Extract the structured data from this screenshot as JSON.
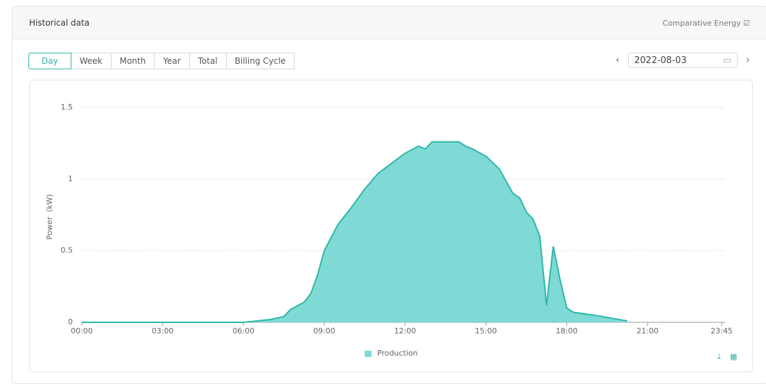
{
  "header": {
    "title": "Historical data",
    "link": "Comparative Energy"
  },
  "tabs": [
    "Day",
    "Week",
    "Month",
    "Year",
    "Total",
    "Billing Cycle"
  ],
  "active_tab": "Day",
  "date": "2022-08-03",
  "chart_data": {
    "type": "area",
    "y_label": "Power（kW)",
    "x": [
      "00:00",
      "06:00",
      "06:30",
      "07:00",
      "07:30",
      "07:45",
      "08:15",
      "08:30",
      "08:45",
      "09:00",
      "09:30",
      "10:00",
      "10:30",
      "11:00",
      "11:30",
      "12:00",
      "12:30",
      "12:45",
      "13:00",
      "13:30",
      "14:00",
      "14:15",
      "14:30",
      "15:00",
      "15:30",
      "16:00",
      "16:15",
      "16:30",
      "16:45",
      "17:00",
      "17:15",
      "17:30",
      "17:45",
      "18:00",
      "18:15",
      "19:00",
      "20:15"
    ],
    "series": [
      {
        "name": "Production",
        "color": "#2bb7aa",
        "fill": "#7fd9d4",
        "values": [
          0,
          0,
          0.01,
          0.02,
          0.04,
          0.09,
          0.14,
          0.2,
          0.33,
          0.5,
          0.68,
          0.8,
          0.93,
          1.04,
          1.11,
          1.18,
          1.23,
          1.21,
          1.26,
          1.26,
          1.26,
          1.23,
          1.21,
          1.16,
          1.07,
          0.9,
          0.87,
          0.77,
          0.72,
          0.6,
          0.12,
          0.53,
          0.3,
          0.1,
          0.07,
          0.05,
          0.01
        ]
      }
    ],
    "xlim": [
      "00:00",
      "23:45"
    ],
    "xticks": [
      "00:00",
      "03:00",
      "06:00",
      "09:00",
      "12:00",
      "15:00",
      "18:00",
      "21:00",
      "23:45"
    ],
    "ylim": [
      0,
      1.5
    ],
    "yticks": [
      0,
      0.5,
      1,
      1.5
    ],
    "grid": true
  }
}
